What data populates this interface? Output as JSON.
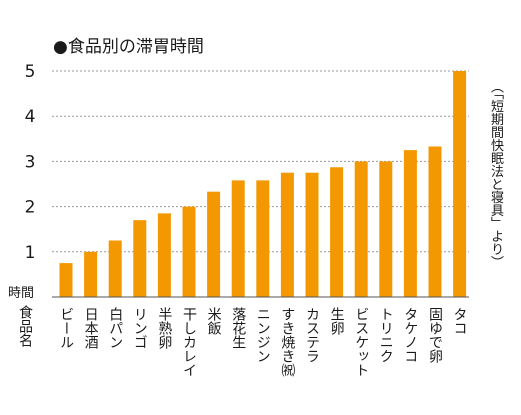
{
  "chart_data": {
    "type": "bar",
    "title": "●食品別の滞胃時間",
    "ylabel": "時間",
    "xlabel": "食品名",
    "source": "（「短期間快眠法と寝具」より）",
    "ylim": [
      0,
      5
    ],
    "yticks": [
      1,
      2,
      3,
      4,
      5
    ],
    "grid": true,
    "bar_color": "#f39800",
    "grid_color": "#999999",
    "categories": [
      "ビール",
      "日本酒",
      "白パン",
      "リンゴ",
      "半熟卵",
      "干しカレイ",
      "米飯",
      "落花生",
      "ニンジン",
      "すき焼き㈷",
      "カステラ",
      "生卵",
      "ビスケット",
      "トリニク",
      "タケノコ",
      "固ゆで卵",
      "タコ"
    ],
    "values": [
      0.75,
      1.0,
      1.25,
      1.7,
      1.85,
      2.0,
      2.33,
      2.58,
      2.58,
      2.75,
      2.75,
      2.87,
      3.0,
      3.0,
      3.25,
      3.33,
      5.0
    ]
  }
}
